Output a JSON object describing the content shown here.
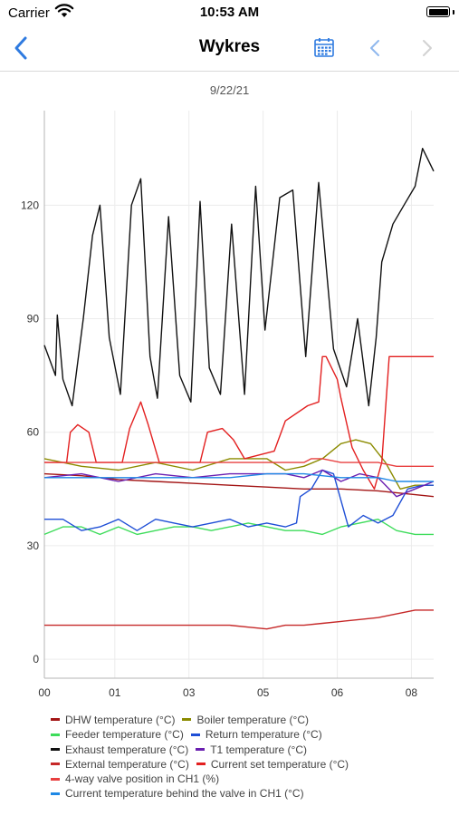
{
  "status_bar": {
    "carrier": "Carrier",
    "time": "10:53 AM"
  },
  "nav": {
    "title": "Wykres"
  },
  "date_label": "9/22/21",
  "colors": {
    "accent": "#2f7be0"
  },
  "chart_data": {
    "type": "line",
    "title": "9/22/21",
    "xlabel": "",
    "ylabel": "",
    "x_ticks": [
      "00",
      "01",
      "03",
      "05",
      "06",
      "08"
    ],
    "x_tick_hours": [
      0,
      1.9,
      3.9,
      5.9,
      7.9,
      9.9
    ],
    "xlim": [
      0,
      10.5
    ],
    "y_ticks": [
      0,
      30,
      60,
      90,
      120
    ],
    "ylim": [
      -5,
      145
    ],
    "grid": true,
    "legend_position": "bottom",
    "series": [
      {
        "name": "DHW temperature (°C)",
        "color": "#a31515",
        "x": [
          0,
          1,
          2,
          3,
          4,
          5,
          6,
          7,
          8,
          9,
          10,
          10.5
        ],
        "y": [
          49,
          48.5,
          47.5,
          47,
          46.5,
          46,
          45.5,
          45,
          45,
          44.5,
          43.5,
          43
        ]
      },
      {
        "name": "Boiler temperature (°C)",
        "color": "#8b8b00",
        "x": [
          0,
          1,
          2,
          3,
          4,
          5,
          6,
          6.5,
          7,
          7.5,
          8,
          8.4,
          8.8,
          9.2,
          9.6,
          10,
          10.5
        ],
        "y": [
          53,
          51,
          50,
          52,
          50,
          53,
          53,
          50,
          51,
          53,
          57,
          58,
          57,
          52,
          45,
          46,
          46
        ]
      },
      {
        "name": "Feeder temperature (°C)",
        "color": "#3ddc5a",
        "x": [
          0,
          0.5,
          1,
          1.5,
          2,
          2.5,
          3,
          3.5,
          4,
          4.5,
          5,
          5.5,
          6,
          6.5,
          7,
          7.5,
          8,
          8.5,
          9,
          9.5,
          10,
          10.5
        ],
        "y": [
          33,
          35,
          35,
          33,
          35,
          33,
          34,
          35,
          35,
          34,
          35,
          36,
          35,
          34,
          34,
          33,
          35,
          36,
          37,
          34,
          33,
          33
        ]
      },
      {
        "name": "Return temperature (°C)",
        "color": "#1f4fd6",
        "x": [
          0,
          0.5,
          1,
          1.5,
          2,
          2.5,
          3,
          3.5,
          4,
          4.5,
          5,
          5.5,
          6,
          6.5,
          6.8,
          6.9,
          7.2,
          7.5,
          7.8,
          8.2,
          8.6,
          9,
          9.4,
          9.8,
          10.2,
          10.5
        ],
        "y": [
          37,
          37,
          34,
          35,
          37,
          34,
          37,
          36,
          35,
          36,
          37,
          35,
          36,
          35,
          36,
          43,
          45,
          50,
          49,
          35,
          38,
          36,
          38,
          45,
          46,
          46
        ]
      },
      {
        "name": "Exhaust temperature (°C)",
        "color": "#111111",
        "x": [
          0,
          0.3,
          0.35,
          0.5,
          0.75,
          1.05,
          1.3,
          1.5,
          1.75,
          2.05,
          2.35,
          2.6,
          2.85,
          3.05,
          3.35,
          3.65,
          3.95,
          4.2,
          4.45,
          4.75,
          5.05,
          5.4,
          5.7,
          5.95,
          6.35,
          6.7,
          7.05,
          7.4,
          7.8,
          8.15,
          8.45,
          8.75,
          8.95,
          9.1,
          9.4,
          9.7,
          10.0,
          10.2,
          10.35,
          10.5
        ],
        "y": [
          83,
          75,
          91,
          74,
          67,
          90,
          112,
          120,
          85,
          70,
          120,
          127,
          80,
          69,
          117,
          75,
          68,
          121,
          77,
          70,
          115,
          70,
          125,
          87,
          122,
          124,
          80,
          126,
          82,
          72,
          90,
          67,
          85,
          105,
          115,
          120,
          125,
          135,
          132,
          129
        ]
      },
      {
        "name": "T1 temperature (°C)",
        "color": "#6a1fb0",
        "x": [
          0,
          1,
          2,
          3,
          4,
          5,
          6,
          6.5,
          7,
          7.5,
          8,
          8.5,
          9,
          9.5,
          10,
          10.5
        ],
        "y": [
          48,
          49,
          47,
          49,
          48,
          49,
          49,
          49,
          48,
          50,
          47,
          49,
          48,
          43,
          45,
          47
        ]
      },
      {
        "name": "External temperature (°C)",
        "color": "#c62828",
        "x": [
          0,
          1,
          2,
          3,
          4,
          5,
          5.5,
          6,
          6.5,
          7,
          7.5,
          8,
          8.5,
          9,
          9.5,
          10,
          10.5
        ],
        "y": [
          9,
          9,
          9,
          9,
          9,
          9,
          8.5,
          8,
          9,
          9,
          9.5,
          10,
          10.5,
          11,
          12,
          13,
          13
        ]
      },
      {
        "name": "Current set temperature (°C)",
        "color": "#e32020",
        "x": [
          0,
          0.6,
          0.7,
          0.9,
          1.2,
          1.4,
          2.1,
          2.3,
          2.6,
          2.8,
          3.1,
          3.3,
          4.2,
          4.4,
          4.8,
          5.1,
          5.4,
          6.2,
          6.5,
          7.1,
          7.4,
          7.5,
          7.6,
          7.9,
          8.0,
          8.3,
          8.6,
          8.9,
          9.1,
          9.3,
          9.9,
          10.5
        ],
        "y": [
          52,
          52,
          60,
          62,
          60,
          52,
          52,
          61,
          68,
          62,
          52,
          52,
          52,
          60,
          61,
          58,
          53,
          55,
          63,
          67,
          68,
          80,
          80,
          74,
          69,
          56,
          50,
          45,
          52,
          80,
          80,
          80
        ]
      },
      {
        "name": "4-way valve position in CH1 (%)",
        "color": "#e84040",
        "x": [
          0,
          1,
          2,
          3,
          4,
          5,
          6,
          7,
          7.2,
          7.5,
          8,
          8.5,
          9,
          9.5,
          10,
          10.5
        ],
        "y": [
          52,
          52,
          52,
          52,
          52,
          52,
          52,
          52,
          53,
          53,
          52,
          52,
          52,
          51,
          51,
          51
        ]
      },
      {
        "name": "Current temperature behind the valve in CH1 (°C)",
        "color": "#1e88e5",
        "x": [
          0,
          1,
          2,
          3,
          4,
          5,
          6,
          7,
          8,
          8.5,
          9,
          9.5,
          10,
          10.5
        ],
        "y": [
          48,
          48,
          48,
          48,
          48,
          48,
          49,
          49,
          48,
          48,
          48,
          47,
          47,
          47
        ]
      }
    ]
  }
}
